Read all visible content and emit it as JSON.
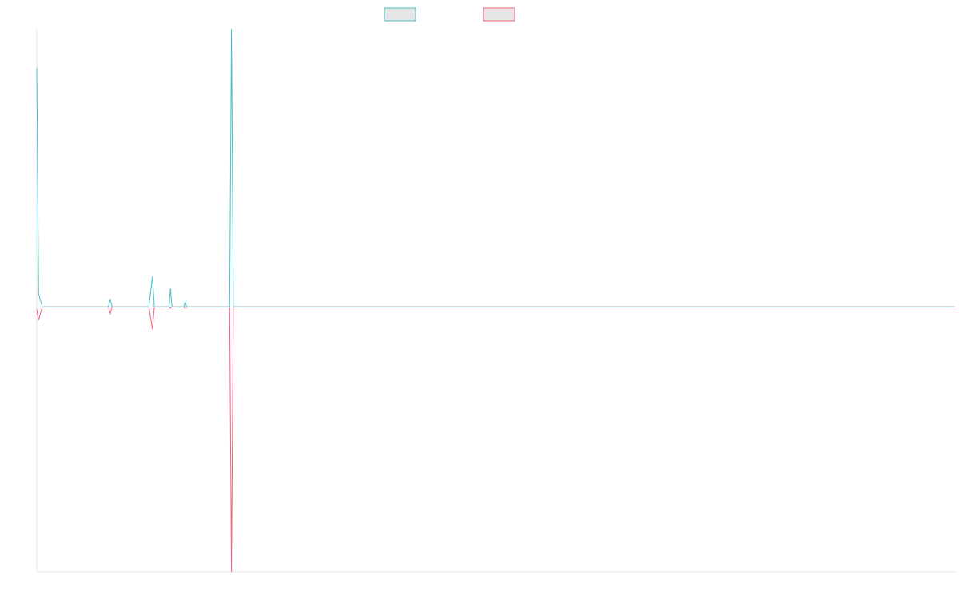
{
  "chart_data": {
    "type": "line",
    "title": "",
    "xlabel": "",
    "ylabel": "",
    "grid": false,
    "legend_position": "top-center",
    "x_range": [
      0,
      500
    ],
    "ylim": [
      -200,
      210
    ],
    "series": [
      {
        "color": "#4bbfc4",
        "points": [
          [
            0,
            180
          ],
          [
            1,
            10
          ],
          [
            3,
            0
          ],
          [
            39,
            0
          ],
          [
            40,
            6
          ],
          [
            41,
            0
          ],
          [
            61,
            0
          ],
          [
            63,
            23
          ],
          [
            64,
            0
          ],
          [
            72,
            0
          ],
          [
            72.8,
            14
          ],
          [
            73.6,
            0
          ],
          [
            80,
            0
          ],
          [
            80.8,
            4
          ],
          [
            81.6,
            0
          ],
          [
            105,
            0
          ],
          [
            106,
            210
          ],
          [
            107,
            0
          ],
          [
            500,
            0
          ]
        ]
      },
      {
        "color": "#f0647e",
        "points": [
          [
            0,
            -2
          ],
          [
            1,
            -10
          ],
          [
            3,
            0
          ],
          [
            39,
            0
          ],
          [
            40,
            -5
          ],
          [
            41,
            0
          ],
          [
            61,
            0
          ],
          [
            63,
            -17
          ],
          [
            64,
            0
          ],
          [
            72,
            0
          ],
          [
            72.8,
            -1
          ],
          [
            73.6,
            0
          ],
          [
            80,
            0
          ],
          [
            80.8,
            -1
          ],
          [
            81.6,
            0
          ],
          [
            105,
            0
          ],
          [
            106,
            -200
          ],
          [
            107,
            0
          ],
          [
            500,
            0
          ]
        ]
      }
    ]
  }
}
